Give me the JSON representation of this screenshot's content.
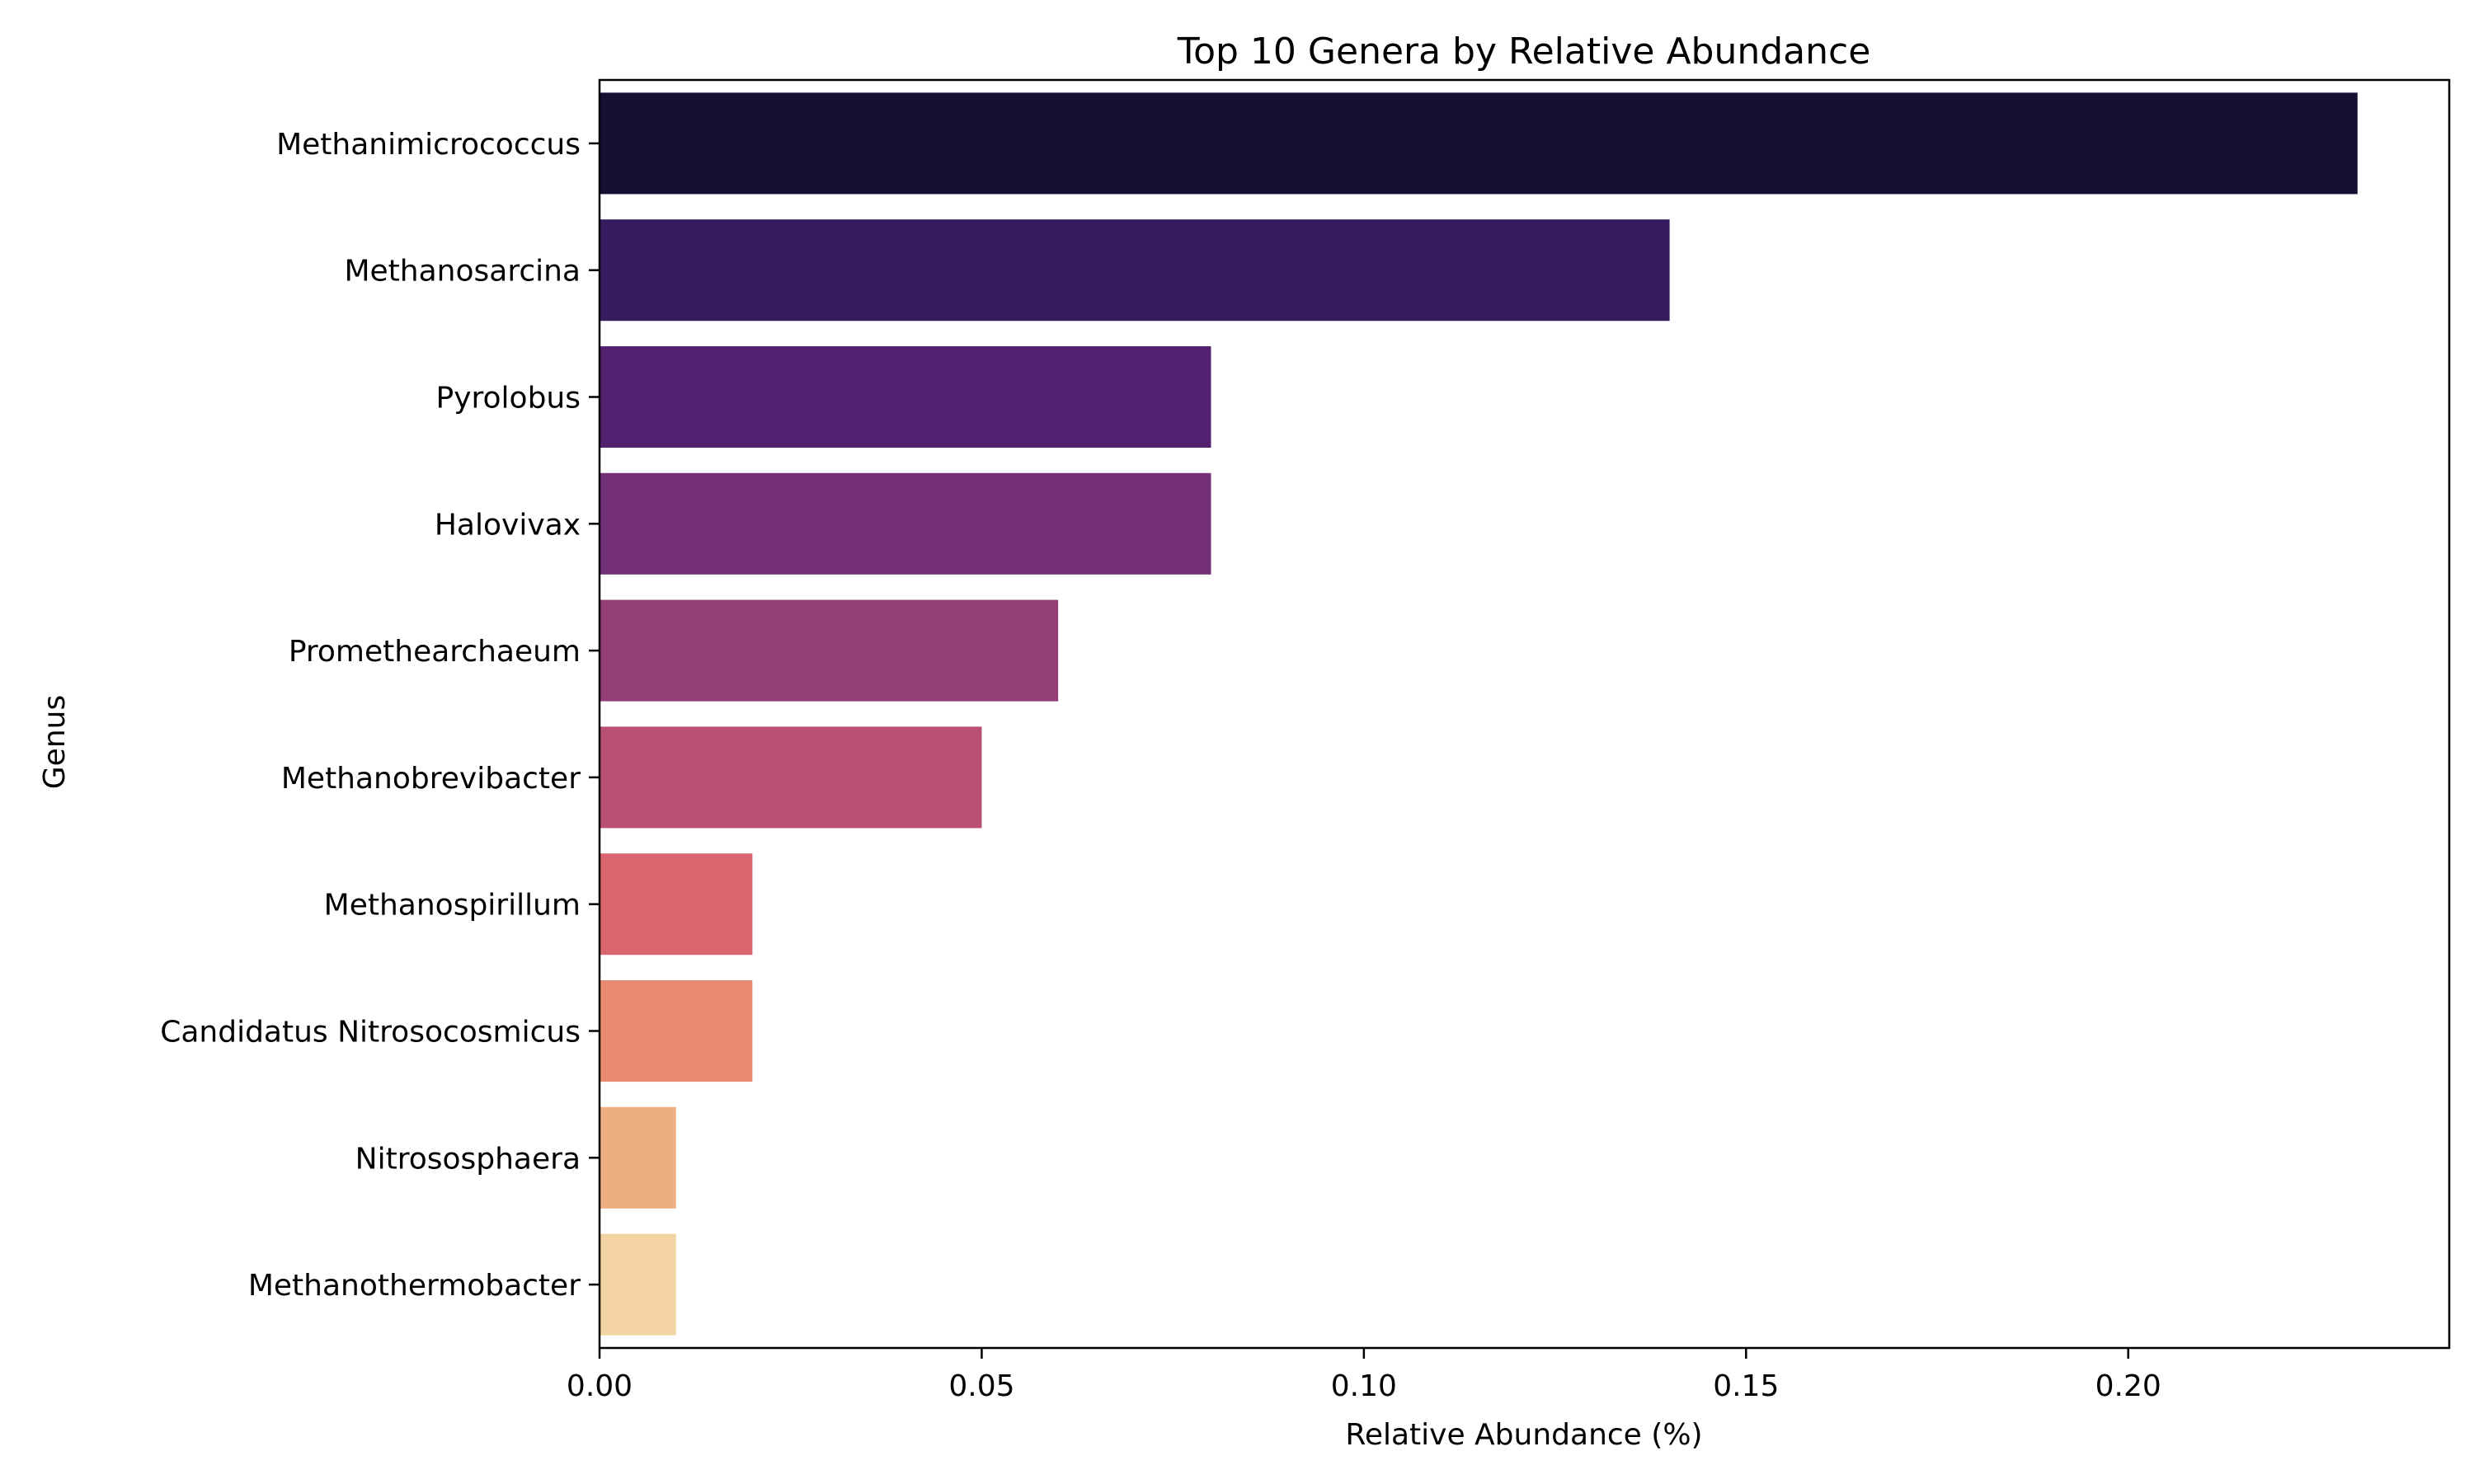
{
  "chart_data": {
    "type": "bar",
    "orientation": "horizontal",
    "title": "Top 10 Genera by Relative Abundance",
    "xlabel": "Relative Abundance (%)",
    "ylabel": "Genus",
    "xlim": [
      0,
      0.242
    ],
    "xticks": [
      0.0,
      0.05,
      0.1,
      0.15,
      0.2
    ],
    "xtick_labels": [
      "0.00",
      "0.05",
      "0.10",
      "0.15",
      "0.20"
    ],
    "grid": false,
    "categories": [
      "Methanimicrococcus",
      "Methanosarcina",
      "Pyrolobus",
      "Halovivax",
      "Promethearchaeum",
      "Methanobrevibacter",
      "Methanospirillum",
      "Candidatus Nitrosocosmicus",
      "Nitrososphaera",
      "Methanothermobacter"
    ],
    "values": [
      0.23,
      0.14,
      0.08,
      0.08,
      0.06,
      0.05,
      0.02,
      0.02,
      0.01,
      0.01
    ],
    "colors": [
      "#160f31",
      "#351c5e",
      "#542171",
      "#732f76",
      "#943e76",
      "#ba4f74",
      "#d9666f",
      "#e78a70",
      "#edae81",
      "#f2d3a1"
    ]
  }
}
